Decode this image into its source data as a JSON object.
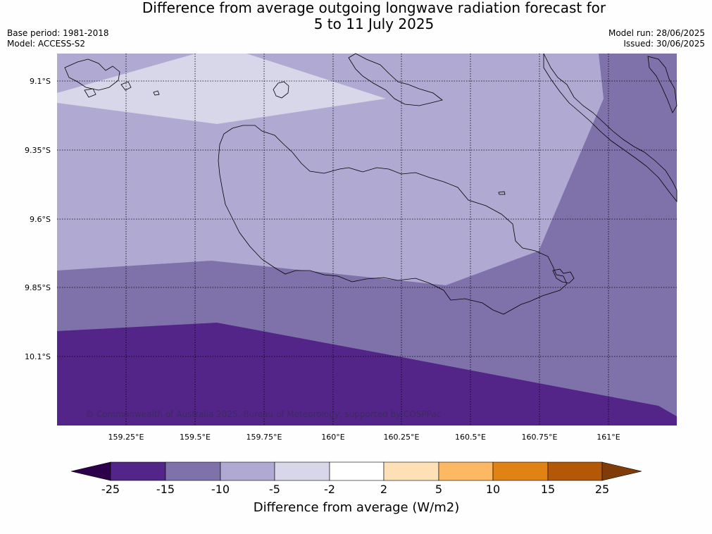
{
  "title_line1": "Difference from average outgoing longwave radiation forecast for",
  "title_line2": "5 to 11 July 2025",
  "base_period": "Base period: 1981-2018",
  "model": "Model: ACCESS-S2",
  "model_run": "Model run: 28/06/2025",
  "issued": "Issued: 30/06/2025",
  "copyright": "© Commonwealth of Australia 2025, Bureau of Meteorology, supported by COSPPac",
  "map": {
    "lon_ticks": [
      "159.25°E",
      "159.5°E",
      "159.75°E",
      "160°E",
      "160.25°E",
      "160.5°E",
      "160.75°E",
      "161°E"
    ],
    "lat_ticks": [
      "9.1°S",
      "9.35°S",
      "9.6°S",
      "9.85°S",
      "10.1°S"
    ]
  },
  "colorbar": {
    "label": "Difference from average (W/m2)",
    "ticks": [
      "-25",
      "-15",
      "-10",
      "-5",
      "-2",
      "2",
      "5",
      "10",
      "15",
      "25"
    ],
    "colors": {
      "below_min": "#2d004b",
      "-25_to_-15": "#542588",
      "-15_to_-10": "#7f72aa",
      "-10_to_-5": "#b0a9d1",
      "-5_to_-2": "#d8d7e9",
      "-2_to_2": "#ffffff",
      "2_to_5": "#fee0b6",
      "5_to_10": "#fdb863",
      "10_to_15": "#e08214",
      "15_to_25": "#b35806",
      "above_max": "#7f3b08"
    }
  }
}
